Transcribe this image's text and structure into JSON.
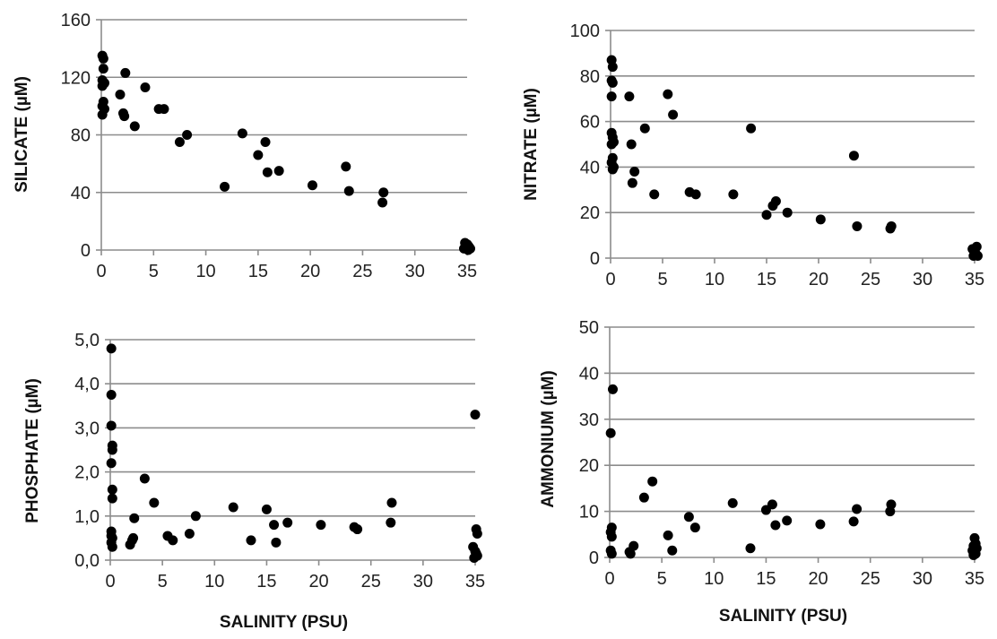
{
  "chart_data": [
    {
      "type": "scatter",
      "ylabel": "SILICATE (µM)",
      "xlabel": "",
      "xlim": [
        0,
        35
      ],
      "ylim": [
        0,
        160
      ],
      "xticks": [
        "0",
        "5",
        "10",
        "15",
        "20",
        "25",
        "30",
        "35"
      ],
      "yticks": [
        "0",
        "40",
        "80",
        "120",
        "160"
      ],
      "grid": true,
      "points": [
        [
          0.1,
          135
        ],
        [
          0.2,
          133
        ],
        [
          0.2,
          126
        ],
        [
          0.1,
          118
        ],
        [
          0.3,
          116
        ],
        [
          0.1,
          114
        ],
        [
          0.2,
          103
        ],
        [
          0.1,
          100
        ],
        [
          0.3,
          98
        ],
        [
          0.1,
          94
        ],
        [
          2.3,
          123
        ],
        [
          1.8,
          108
        ],
        [
          2.1,
          95
        ],
        [
          2.2,
          93
        ],
        [
          3.2,
          86
        ],
        [
          4.2,
          113
        ],
        [
          5.5,
          98
        ],
        [
          6,
          98
        ],
        [
          7.5,
          75
        ],
        [
          8.2,
          80
        ],
        [
          11.8,
          44
        ],
        [
          13.5,
          81
        ],
        [
          15,
          66
        ],
        [
          15.7,
          75
        ],
        [
          15.9,
          54
        ],
        [
          17,
          55
        ],
        [
          20.2,
          45
        ],
        [
          23.4,
          58
        ],
        [
          23.7,
          41
        ],
        [
          27,
          40
        ],
        [
          26.9,
          33
        ],
        [
          34.8,
          5
        ],
        [
          35,
          4
        ],
        [
          35.1,
          3
        ],
        [
          34.9,
          2
        ],
        [
          35.2,
          2
        ],
        [
          34.7,
          1
        ],
        [
          35.3,
          1
        ],
        [
          35.1,
          0
        ]
      ]
    },
    {
      "type": "scatter",
      "ylabel": "NITRATE (µM)",
      "xlabel": "",
      "xlim": [
        0,
        35
      ],
      "ylim": [
        0,
        100
      ],
      "xticks": [
        "0",
        "5",
        "10",
        "15",
        "20",
        "25",
        "30",
        "35"
      ],
      "yticks": [
        "0",
        "20",
        "40",
        "60",
        "80",
        "100"
      ],
      "grid": true,
      "points": [
        [
          0.1,
          87
        ],
        [
          0.2,
          84
        ],
        [
          0.1,
          78
        ],
        [
          0.2,
          77
        ],
        [
          0.1,
          71
        ],
        [
          0.1,
          55
        ],
        [
          0.2,
          53
        ],
        [
          0.3,
          51
        ],
        [
          0.1,
          50
        ],
        [
          0.2,
          44
        ],
        [
          0.1,
          42
        ],
        [
          0.3,
          40
        ],
        [
          0.2,
          39
        ],
        [
          1.8,
          71
        ],
        [
          2,
          50
        ],
        [
          2.1,
          33
        ],
        [
          2.3,
          38
        ],
        [
          3.3,
          57
        ],
        [
          4.2,
          28
        ],
        [
          5.5,
          72
        ],
        [
          6,
          63
        ],
        [
          7.6,
          29
        ],
        [
          8.2,
          28
        ],
        [
          11.8,
          28
        ],
        [
          13.5,
          57
        ],
        [
          15,
          19
        ],
        [
          15.6,
          23
        ],
        [
          15.9,
          25
        ],
        [
          17,
          20
        ],
        [
          20.2,
          17
        ],
        [
          23.4,
          45
        ],
        [
          23.7,
          14
        ],
        [
          26.9,
          13
        ],
        [
          27,
          14
        ],
        [
          34.8,
          4
        ],
        [
          35,
          3
        ],
        [
          35.1,
          2
        ],
        [
          34.9,
          1
        ],
        [
          35.2,
          5
        ],
        [
          35.3,
          1
        ]
      ]
    },
    {
      "type": "scatter",
      "ylabel": "PHOSPHATE (µM)",
      "xlabel": "SALINITY (PSU)",
      "xlim": [
        0,
        35
      ],
      "ylim": [
        0,
        5
      ],
      "xticks": [
        "0",
        "5",
        "10",
        "15",
        "20",
        "25",
        "30",
        "35"
      ],
      "yticks": [
        "0,0",
        "1,0",
        "2,0",
        "3,0",
        "4,0",
        "5,0"
      ],
      "grid": true,
      "points": [
        [
          0.1,
          4.8
        ],
        [
          0.1,
          3.75
        ],
        [
          0.1,
          3.05
        ],
        [
          0.2,
          2.6
        ],
        [
          0.2,
          2.5
        ],
        [
          0.1,
          2.2
        ],
        [
          0.2,
          1.6
        ],
        [
          0.2,
          1.4
        ],
        [
          0.1,
          0.65
        ],
        [
          0.1,
          0.55
        ],
        [
          0.2,
          0.5
        ],
        [
          0.1,
          0.4
        ],
        [
          0.2,
          0.3
        ],
        [
          1.9,
          0.35
        ],
        [
          2.1,
          0.45
        ],
        [
          2.2,
          0.5
        ],
        [
          2.3,
          0.95
        ],
        [
          3.3,
          1.85
        ],
        [
          4.2,
          1.3
        ],
        [
          5.5,
          0.55
        ],
        [
          6,
          0.45
        ],
        [
          7.6,
          0.6
        ],
        [
          8.2,
          1.0
        ],
        [
          11.8,
          1.2
        ],
        [
          13.5,
          0.45
        ],
        [
          15,
          1.15
        ],
        [
          15.7,
          0.8
        ],
        [
          15.9,
          0.4
        ],
        [
          17,
          0.85
        ],
        [
          20.2,
          0.8
        ],
        [
          23.4,
          0.75
        ],
        [
          23.7,
          0.7
        ],
        [
          26.9,
          0.85
        ],
        [
          27,
          1.3
        ],
        [
          35,
          3.3
        ],
        [
          35.1,
          0.7
        ],
        [
          35.2,
          0.6
        ],
        [
          34.8,
          0.3
        ],
        [
          35,
          0.2
        ],
        [
          35.1,
          0.15
        ],
        [
          35.2,
          0.1
        ],
        [
          34.9,
          0.05
        ]
      ]
    },
    {
      "type": "scatter",
      "ylabel": "AMMONIUM (µM)",
      "xlabel": "SALINITY (PSU)",
      "xlim": [
        0,
        35
      ],
      "ylim": [
        0,
        50
      ],
      "xticks": [
        "0",
        "5",
        "10",
        "15",
        "20",
        "25",
        "30",
        "35"
      ],
      "yticks": [
        "0",
        "10",
        "20",
        "30",
        "40",
        "50"
      ],
      "grid": true,
      "points": [
        [
          0.3,
          36.5
        ],
        [
          0.1,
          27
        ],
        [
          0.2,
          6.5
        ],
        [
          0.1,
          5.5
        ],
        [
          0.2,
          4.5
        ],
        [
          0.1,
          1.5
        ],
        [
          0.2,
          0.8
        ],
        [
          1.9,
          1.2
        ],
        [
          2,
          0.8
        ],
        [
          2.3,
          2.5
        ],
        [
          3.3,
          13
        ],
        [
          4.1,
          16.5
        ],
        [
          5.6,
          4.8
        ],
        [
          6,
          1.5
        ],
        [
          7.6,
          8.8
        ],
        [
          8.2,
          6.5
        ],
        [
          11.8,
          11.8
        ],
        [
          13.5,
          2
        ],
        [
          15,
          10.3
        ],
        [
          15.6,
          11.5
        ],
        [
          15.9,
          7
        ],
        [
          17,
          8
        ],
        [
          20.2,
          7.2
        ],
        [
          23.4,
          7.8
        ],
        [
          23.7,
          10.5
        ],
        [
          26.9,
          10
        ],
        [
          27,
          11.5
        ],
        [
          35,
          4.2
        ],
        [
          35.1,
          3
        ],
        [
          34.9,
          2.5
        ],
        [
          35.2,
          2
        ],
        [
          34.8,
          1.5
        ],
        [
          35,
          1
        ],
        [
          35.1,
          0.8
        ],
        [
          34.9,
          0.5
        ]
      ]
    }
  ]
}
